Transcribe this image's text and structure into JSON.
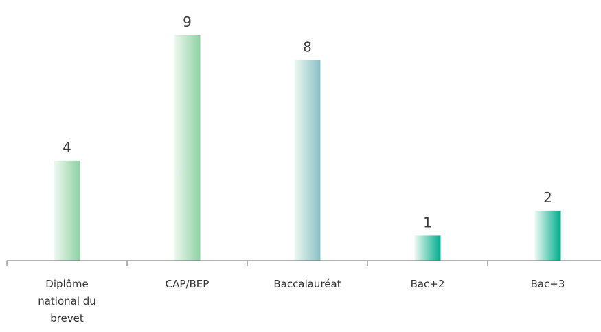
{
  "chart_data": {
    "type": "bar",
    "categories": [
      [
        "Diplôme",
        "national du",
        "brevet"
      ],
      [
        "CAP/BEP"
      ],
      [
        "Baccalauréat"
      ],
      [
        "Bac+2"
      ],
      [
        "Bac+3"
      ]
    ],
    "values": [
      4,
      9,
      8,
      1,
      2
    ],
    "data_labels": [
      "4",
      "9",
      "8",
      "1",
      "2"
    ],
    "title": "",
    "xlabel": "",
    "ylabel": "",
    "ylim": [
      0,
      9
    ],
    "grid": false,
    "legend": "none",
    "colors": {
      "light": "#eef8f1",
      "green": "#8fd1a3",
      "blue": "#88c0c6",
      "teal": "#00ac8c",
      "axis": "#666666",
      "text": "#3a3a3a"
    },
    "bar_gradients": [
      [
        "#eef8f1",
        "#8fd1a3"
      ],
      [
        "#eef8f1",
        "#8fd1a3"
      ],
      [
        "#eef8f1",
        "#88c0c6"
      ],
      [
        "#eef8f1",
        "#00ac8c"
      ],
      [
        "#eef8f1",
        "#00ac8c"
      ]
    ]
  }
}
